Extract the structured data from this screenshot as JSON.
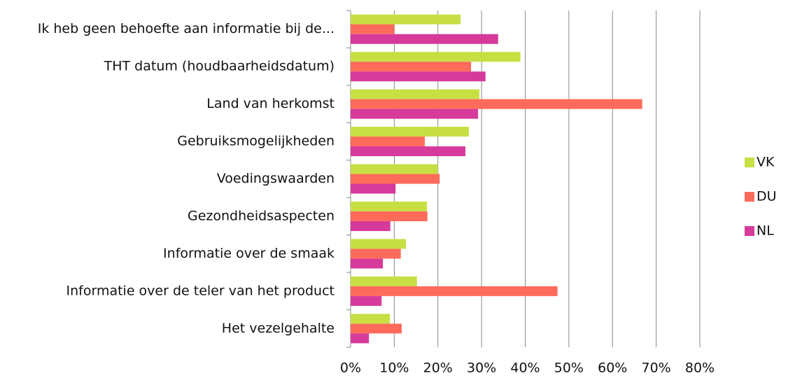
{
  "chart_data": {
    "type": "bar",
    "orientation": "horizontal",
    "categories": [
      "Ik heb geen behoefte aan informatie bij de...",
      "THT datum (houdbaarheidsdatum)",
      "Land van herkomst",
      "Gebruiksmogelijkheden",
      "Voedingswaarden",
      "Gezondheidsaspecten",
      "Informatie over de smaak",
      "Informatie over de teler van het product",
      "Het vezelgehalte"
    ],
    "series": [
      {
        "name": "VK",
        "color": "#c8df44",
        "values": [
          25.2,
          38.9,
          29.5,
          27.1,
          20,
          17.5,
          12.7,
          15.2,
          9
        ]
      },
      {
        "name": "DU",
        "color": "#ff6b5b",
        "values": [
          10,
          27.6,
          66.8,
          17,
          20.4,
          17.6,
          11.5,
          47.4,
          11.7
        ]
      },
      {
        "name": "NL",
        "color": "#d63a9a",
        "values": [
          33.8,
          30.9,
          29.2,
          26.3,
          10.3,
          9.1,
          7.4,
          7.1,
          4.2
        ]
      }
    ],
    "xlim": [
      0,
      80
    ],
    "xticks": [
      {
        "value": 0,
        "label": "0%"
      },
      {
        "value": 10,
        "label": "10%"
      },
      {
        "value": 20,
        "label": "20%"
      },
      {
        "value": 30,
        "label": "30%"
      },
      {
        "value": 40,
        "label": "40%"
      },
      {
        "value": 50,
        "label": "50%"
      },
      {
        "value": 60,
        "label": "60%"
      },
      {
        "value": 70,
        "label": "70%"
      },
      {
        "value": 80,
        "label": "80%"
      }
    ],
    "grid": true,
    "legend": "right"
  }
}
